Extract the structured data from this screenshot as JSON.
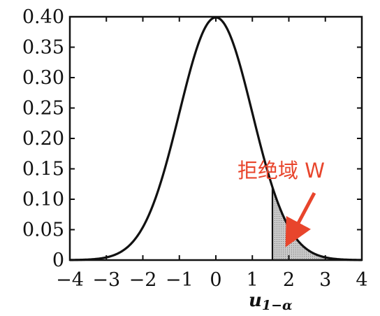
{
  "chart_data": {
    "type": "line",
    "distribution": "standard normal density",
    "xlim": [
      -4,
      4
    ],
    "ylim": [
      0,
      0.4
    ],
    "x_ticks": [
      -4,
      -3,
      -2,
      -1,
      0,
      1,
      2,
      3,
      4
    ],
    "x_tick_labels": [
      "−4",
      "−3",
      "−2",
      "−1",
      "0",
      "1",
      "2",
      "3",
      "4"
    ],
    "y_ticks": [
      0,
      0.05,
      0.1,
      0.15,
      0.2,
      0.25,
      0.3,
      0.35,
      0.4
    ],
    "y_tick_labels": [
      "0",
      "0.05",
      "0.10",
      "0.15",
      "0.20",
      "0.25",
      "0.30",
      "0.35",
      "0.40"
    ],
    "critical_value": 1.55,
    "critical_label": {
      "main": "u",
      "sub": "1−α"
    },
    "shaded_region": {
      "from": 1.55,
      "to": 4
    },
    "annotation": {
      "text": "拒绝域 W",
      "color": "#e8452c"
    },
    "grid": false
  }
}
